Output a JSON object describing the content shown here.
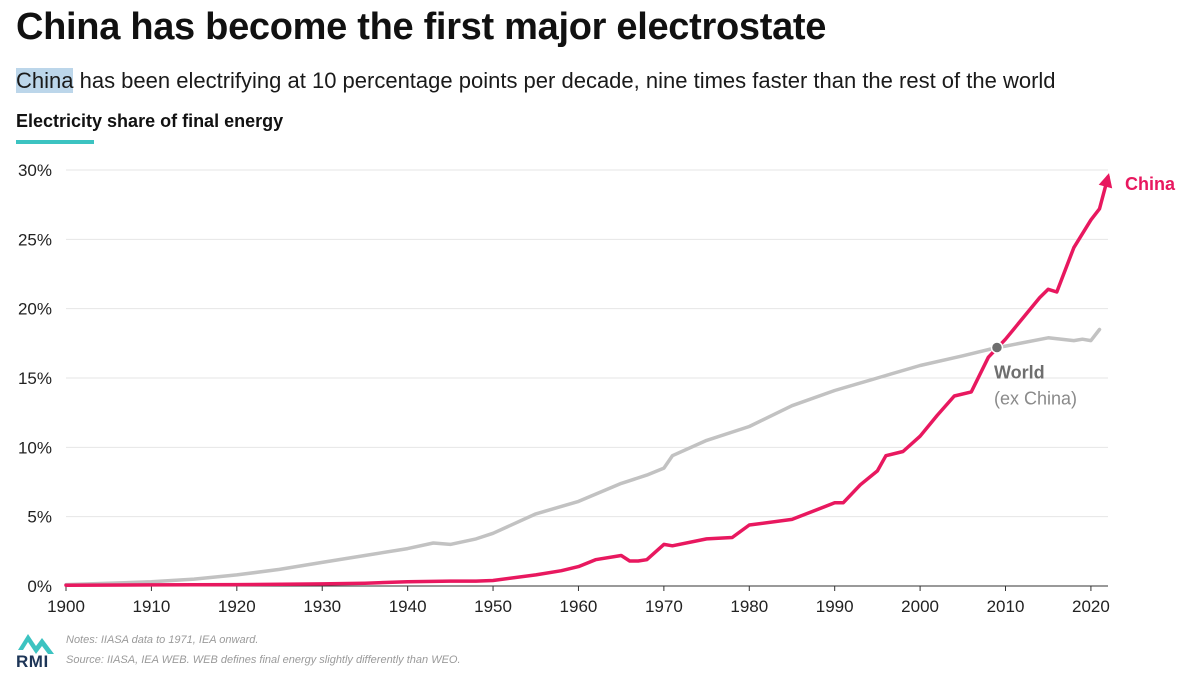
{
  "header": {
    "title": "China has become the first major electrostate",
    "subtitle_highlight": "China",
    "subtitle_rest": " has been electrifying at 10 percentage points per decade, nine times faster than the rest of the world",
    "chart_label": "Electricity share of final energy"
  },
  "footer": {
    "logo_text": "RMI",
    "notes": "Notes: IIASA data to 1971, IEA onward.",
    "source": "Source: IIASA, IEA WEB. WEB defines final energy slightly differently than WEO."
  },
  "colors": {
    "china": "#e8185f",
    "world": "#c2c2c2",
    "accent_underline": "#3cc3c1",
    "highlight": "#bcd6ea"
  },
  "chart_data": {
    "type": "line",
    "x_ticks": [
      1900,
      1910,
      1920,
      1930,
      1940,
      1950,
      1960,
      1970,
      1980,
      1990,
      2000,
      2010,
      2020
    ],
    "y_ticks": [
      0,
      5,
      10,
      15,
      20,
      25,
      30
    ],
    "y_tick_labels": [
      "0%",
      "5%",
      "10%",
      "15%",
      "20%",
      "25%",
      "30%"
    ],
    "xlim": [
      1900,
      2022
    ],
    "ylim": [
      0,
      30
    ],
    "grid": true,
    "series": [
      {
        "name": "World",
        "label_sub": "(ex China)",
        "x": [
          1900,
          1905,
          1910,
          1915,
          1920,
          1925,
          1930,
          1935,
          1940,
          1943,
          1945,
          1948,
          1950,
          1955,
          1960,
          1965,
          1968,
          1970,
          1971,
          1975,
          1980,
          1985,
          1990,
          1995,
          2000,
          2005,
          2009,
          2010,
          2015,
          2018,
          2019,
          2020,
          2021
        ],
        "y": [
          0.1,
          0.2,
          0.3,
          0.5,
          0.8,
          1.2,
          1.7,
          2.2,
          2.7,
          3.1,
          3.0,
          3.4,
          3.8,
          5.2,
          6.1,
          7.4,
          8.0,
          8.5,
          9.4,
          10.5,
          11.5,
          13.0,
          14.1,
          15.0,
          15.9,
          16.6,
          17.2,
          17.3,
          17.9,
          17.7,
          17.8,
          17.7,
          18.5
        ],
        "marker_year": 2009,
        "marker_value": 17.2
      },
      {
        "name": "China",
        "x": [
          1900,
          1910,
          1920,
          1930,
          1935,
          1940,
          1945,
          1948,
          1950,
          1955,
          1958,
          1960,
          1962,
          1965,
          1966,
          1967,
          1968,
          1970,
          1971,
          1975,
          1978,
          1980,
          1985,
          1990,
          1991,
          1993,
          1995,
          1996,
          1998,
          2000,
          2002,
          2004,
          2006,
          2008,
          2010,
          2012,
          2014,
          2015,
          2016,
          2018,
          2020,
          2021,
          2022
        ],
        "y": [
          0.05,
          0.08,
          0.1,
          0.15,
          0.2,
          0.3,
          0.35,
          0.35,
          0.4,
          0.8,
          1.1,
          1.4,
          1.9,
          2.2,
          1.8,
          1.8,
          1.9,
          3.0,
          2.9,
          3.4,
          3.5,
          4.4,
          4.8,
          6.0,
          6.0,
          7.3,
          8.3,
          9.4,
          9.7,
          10.8,
          12.3,
          13.7,
          14.0,
          16.5,
          17.8,
          19.3,
          20.8,
          21.4,
          21.2,
          24.4,
          26.4,
          27.2,
          29.5
        ]
      }
    ]
  }
}
